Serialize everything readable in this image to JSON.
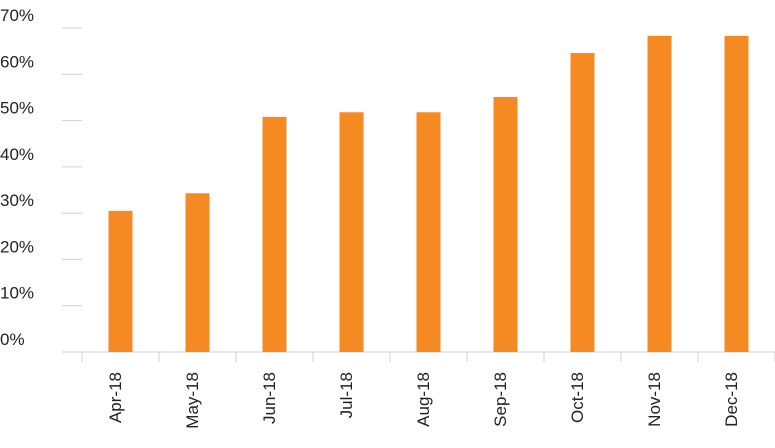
{
  "chart_data": {
    "type": "bar",
    "categories": [
      "Apr-18",
      "May-18",
      "Jun-18",
      "Jul-18",
      "Aug-18",
      "Sep-18",
      "Oct-18",
      "Nov-18",
      "Dec-18"
    ],
    "values": [
      30.5,
      34.3,
      50.8,
      51.8,
      51.8,
      55.1,
      64.6,
      68.3,
      68.3
    ],
    "color": "#f58a23",
    "ylim": [
      0,
      70
    ],
    "yticks": [
      {
        "value": 0,
        "label": "0%"
      },
      {
        "value": 10,
        "label": "10%"
      },
      {
        "value": 20,
        "label": "20%"
      },
      {
        "value": 30,
        "label": "30%"
      },
      {
        "value": 40,
        "label": "40%"
      },
      {
        "value": 50,
        "label": "50%"
      },
      {
        "value": 60,
        "label": "60%"
      },
      {
        "value": 70,
        "label": "70%"
      }
    ]
  }
}
